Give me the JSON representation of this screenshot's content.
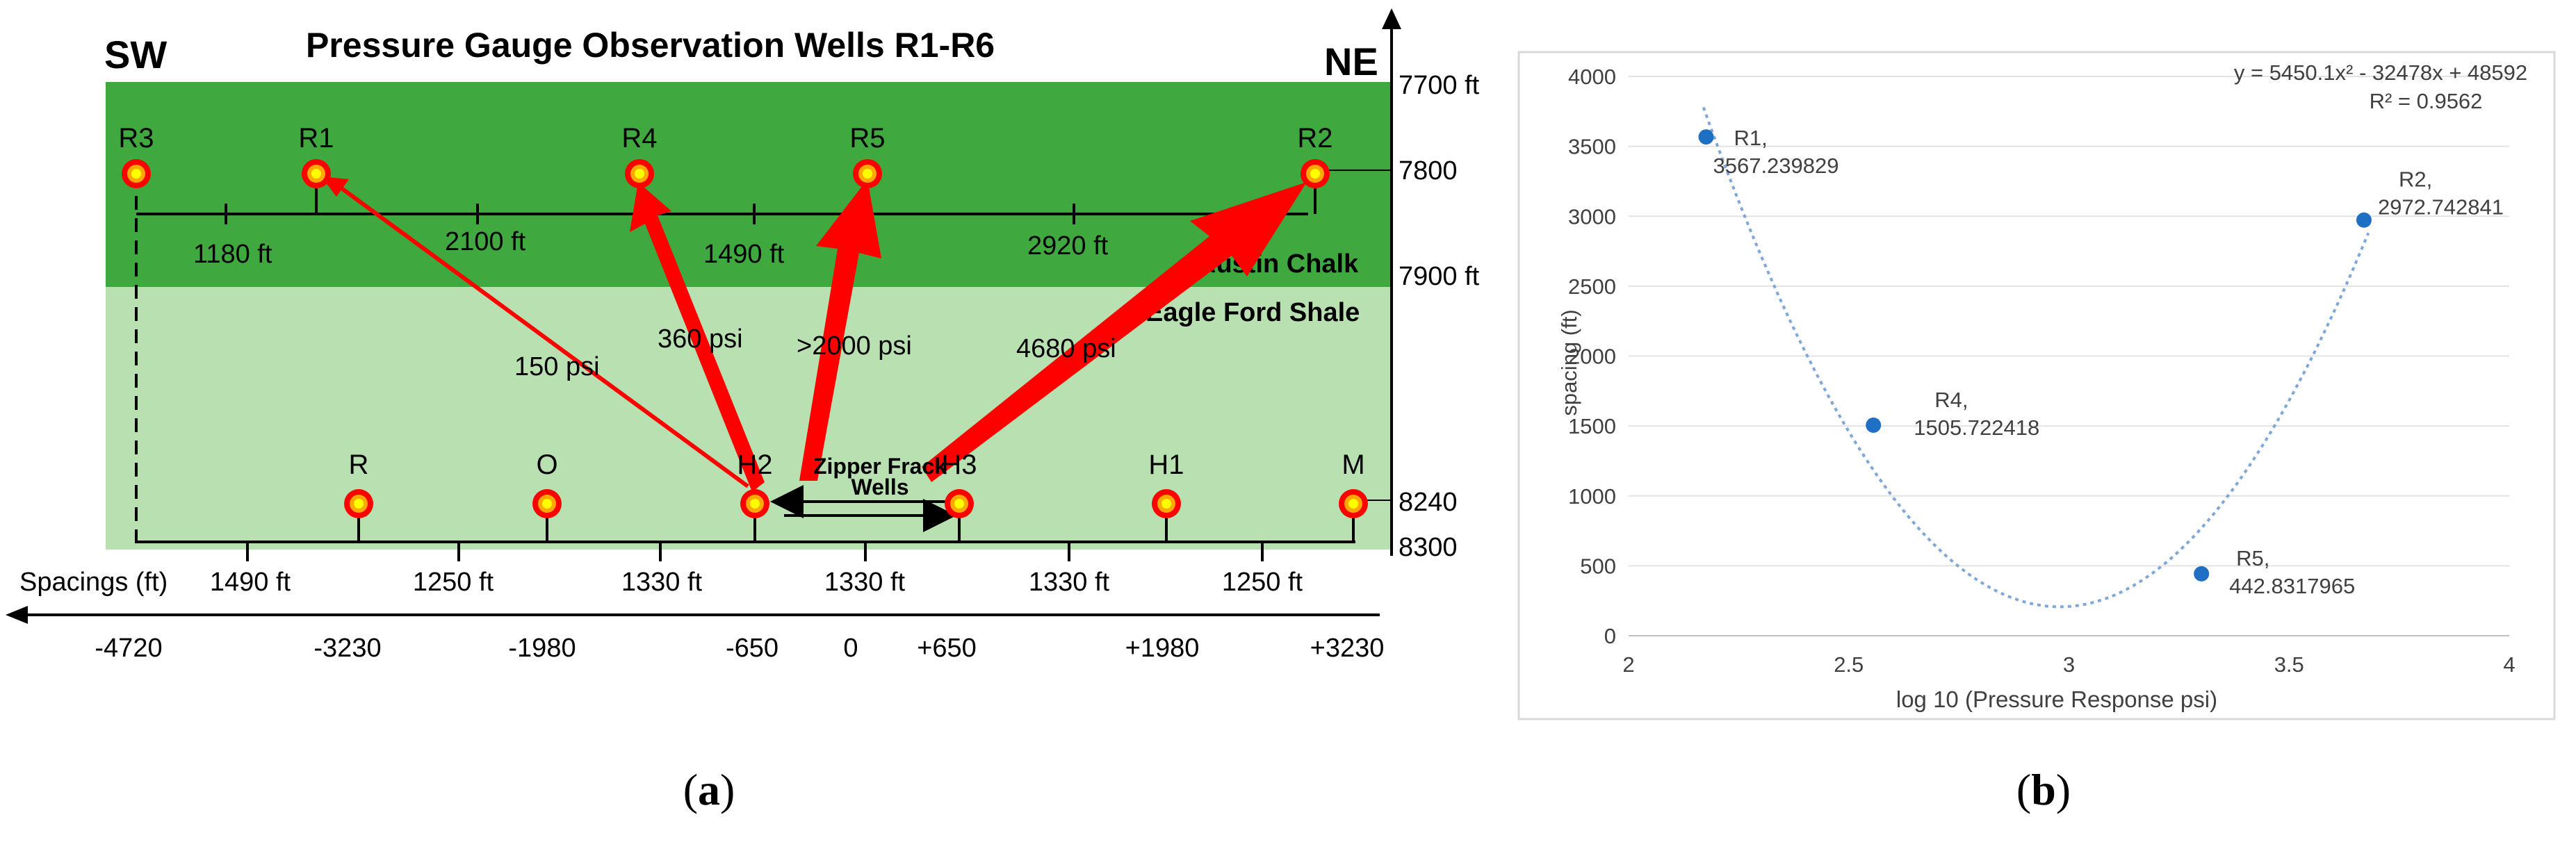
{
  "panel_a": {
    "title": "Pressure Gauge Observation Wells R1-R6",
    "direction_left": "SW",
    "direction_right": "NE",
    "depth_labels": [
      "7700 ft",
      "7800",
      "7900 ft",
      "8240",
      "8300"
    ],
    "layer_labels": [
      "Austin Chalk",
      "Eagle Ford Shale"
    ],
    "observation_wells": [
      "R3",
      "R1",
      "R4",
      "R5",
      "R2"
    ],
    "observation_spacings": [
      "1180 ft",
      "2100 ft",
      "1490 ft",
      "2920 ft"
    ],
    "pressure_labels": [
      "150 psi",
      "360 psi",
      ">2000 psi",
      "4680 psi"
    ],
    "treatment_wells": [
      "R",
      "O",
      "H2",
      "H3",
      "H1",
      "M"
    ],
    "zipper_label_line1": "Zipper Frack",
    "zipper_label_line2": "Wells",
    "spacings_title": "Spacings (ft)",
    "lower_spacings": [
      "1490 ft",
      "1250 ft",
      "1330 ft",
      "1330 ft",
      "1330 ft",
      "1250 ft"
    ],
    "axis_ticks": [
      "-4720",
      "-3230",
      "-1980",
      "-650",
      "0",
      "+650",
      "+1980",
      "+3230"
    ],
    "colors": {
      "dark_green": "#3fa83f",
      "light_green": "#b8e0b0",
      "arrow_red": "#ff0000",
      "well_yellow": "#ffff00"
    }
  },
  "panel_b": {
    "chart_data": {
      "type": "scatter",
      "xlabel": "log 10 (Pressure Response psi)",
      "ylabel": "spacing (ft)",
      "xlim": [
        2,
        4
      ],
      "ylim": [
        0,
        4000
      ],
      "x_ticks": [
        "2",
        "2.5",
        "3",
        "3.5",
        "4"
      ],
      "y_ticks": [
        "0",
        "500",
        "1000",
        "1500",
        "2000",
        "2500",
        "3000",
        "3500",
        "4000"
      ],
      "points": [
        {
          "label": "R1",
          "value_text": "3567.239829",
          "x": 2.176,
          "y": 3567.239829
        },
        {
          "label": "R4",
          "value_text": "1505.722418",
          "x": 2.556,
          "y": 1505.722418
        },
        {
          "label": "R5",
          "value_text": "442.8317965",
          "x": 3.301,
          "y": 442.8317965
        },
        {
          "label": "R2",
          "value_text": "2972.742841",
          "x": 3.67,
          "y": 2972.742841
        }
      ],
      "trendline": {
        "type": "polynomial",
        "coefficients": [
          5450.1,
          -32478,
          48592
        ],
        "xrange": [
          2.17,
          3.68
        ]
      },
      "equation_line1": "y = 5450.1x² - 32478x + 48592",
      "equation_line2": "R² = 0.9562",
      "point_color": "#1f6fc5",
      "trend_color": "#7fa8d8",
      "grid": true
    }
  },
  "captions": {
    "a_open": "(",
    "a_letter": "a",
    "a_close": ")",
    "b_open": "(",
    "b_letter": "b",
    "b_close": ")"
  }
}
